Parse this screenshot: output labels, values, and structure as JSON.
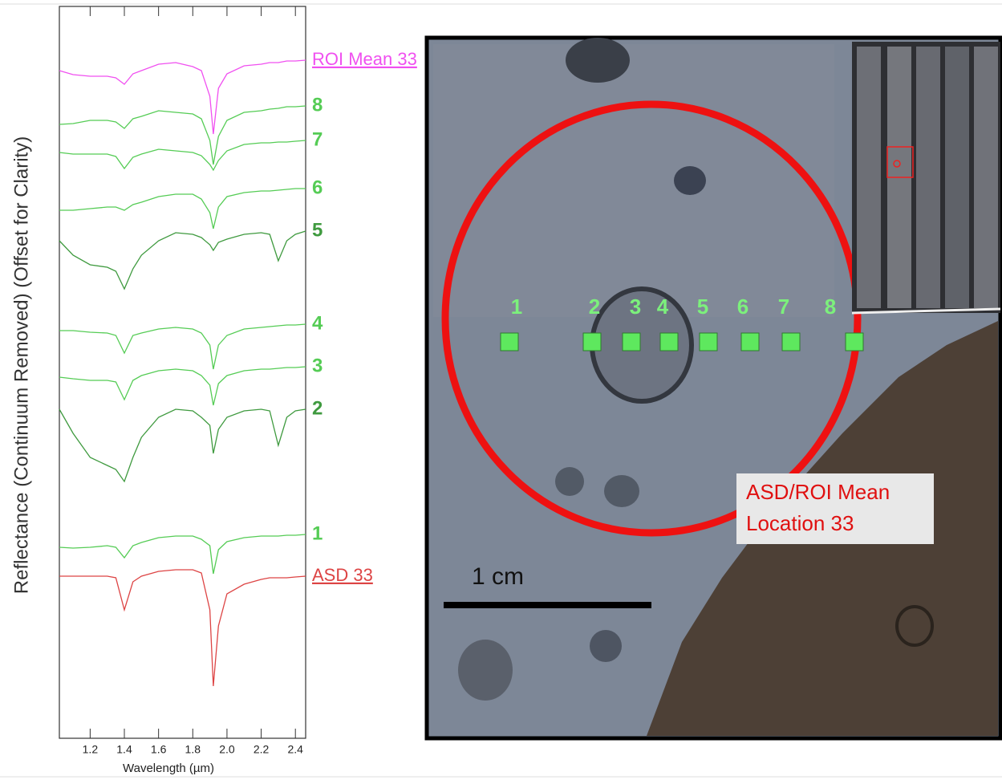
{
  "chart_data": {
    "type": "line",
    "x_label": "Wavelength (µm)",
    "y_label": "Reflectance (Continuum Removed)  (Offset for Clarity)",
    "x": [
      1.02,
      1.1,
      1.2,
      1.3,
      1.35,
      1.4,
      1.45,
      1.5,
      1.6,
      1.7,
      1.8,
      1.85,
      1.9,
      1.92,
      1.95,
      2.0,
      2.1,
      2.2,
      2.25,
      2.3,
      2.35,
      2.4,
      2.46
    ],
    "xlim": [
      1.02,
      2.46
    ],
    "xticks": [
      1.2,
      1.4,
      1.6,
      1.8,
      {
        "value": 2,
        "label": "2.0"
      },
      2.2,
      2.4
    ],
    "ylim": [
      0,
      912
    ],
    "grid": false,
    "series": [
      {
        "name": "ROI Mean 33",
        "color": "#f050f0",
        "values": [
          832,
          827,
          825,
          825,
          823,
          815,
          828,
          832,
          840,
          842,
          837,
          832,
          800,
          753,
          810,
          828,
          838,
          840,
          842,
          842,
          844,
          844,
          845
        ]
      },
      {
        "name": "8",
        "color": "#55cc55",
        "values": [
          765,
          766,
          770,
          770,
          768,
          760,
          772,
          775,
          782,
          780,
          778,
          772,
          745,
          715,
          750,
          770,
          780,
          782,
          784,
          785,
          787,
          787,
          788
        ]
      },
      {
        "name": "7",
        "color": "#55cc55",
        "values": [
          730,
          728,
          728,
          728,
          725,
          710,
          724,
          728,
          734,
          732,
          730,
          726,
          715,
          708,
          720,
          732,
          740,
          742,
          742,
          743,
          743,
          744,
          745
        ]
      },
      {
        "name": "6",
        "color": "#55cc55",
        "values": [
          658,
          658,
          660,
          662,
          662,
          658,
          665,
          668,
          675,
          678,
          678,
          672,
          655,
          635,
          662,
          675,
          680,
          682,
          682,
          683,
          684,
          685,
          685
        ]
      },
      {
        "name": "5",
        "color": "#3f9a3f",
        "values": [
          620,
          602,
          590,
          587,
          582,
          560,
          585,
          602,
          620,
          630,
          628,
          624,
          615,
          608,
          618,
          622,
          628,
          630,
          628,
          595,
          620,
          628,
          632
        ]
      },
      {
        "name": "4",
        "color": "#55cc55",
        "values": [
          508,
          508,
          506,
          505,
          502,
          480,
          502,
          505,
          510,
          512,
          510,
          505,
          490,
          460,
          490,
          502,
          510,
          512,
          513,
          514,
          515,
          515,
          516
        ]
      },
      {
        "name": "3",
        "color": "#55cc55",
        "values": [
          450,
          448,
          446,
          446,
          444,
          422,
          446,
          452,
          458,
          460,
          458,
          452,
          440,
          415,
          442,
          452,
          458,
          460,
          460,
          461,
          462,
          462,
          463
        ]
      },
      {
        "name": "2",
        "color": "#3f9a3f",
        "values": [
          410,
          380,
          350,
          340,
          335,
          320,
          350,
          375,
          400,
          410,
          408,
          400,
          390,
          355,
          385,
          400,
          408,
          410,
          408,
          365,
          400,
          408,
          410
        ]
      },
      {
        "name": "1",
        "color": "#55cc55",
        "values": [
          238,
          237,
          238,
          240,
          238,
          225,
          240,
          244,
          250,
          252,
          252,
          248,
          240,
          205,
          235,
          245,
          250,
          252,
          252,
          252,
          253,
          253,
          254
        ]
      },
      {
        "name": "ASD 33",
        "color": "#dd4444",
        "values": [
          202,
          202,
          202,
          202,
          200,
          160,
          195,
          202,
          208,
          210,
          210,
          206,
          160,
          65,
          140,
          180,
          192,
          198,
          200,
          200,
          200,
          201,
          202
        ]
      }
    ]
  },
  "image": {
    "point_labels": [
      "1",
      "2",
      "3",
      "4",
      "5",
      "6",
      "7",
      "8"
    ],
    "annotation": [
      "ASD/ROI Mean",
      "Location 33"
    ],
    "scale_label": "1 cm"
  }
}
